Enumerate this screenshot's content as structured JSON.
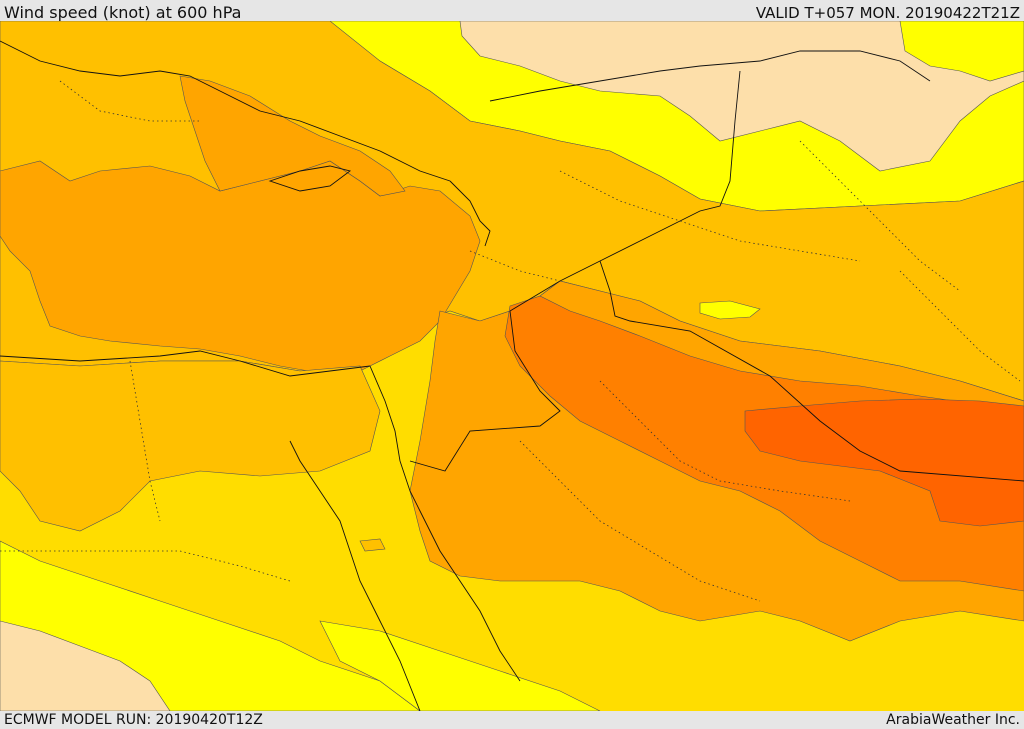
{
  "header": {
    "title": "Wind speed (knot) at 600 hPa",
    "valid": "VALID T+057 MON. 20190422T21Z"
  },
  "footer": {
    "model_run": "ECMWF MODEL RUN: 20190420T12Z",
    "credit": "ArabiaWeather Inc."
  },
  "map": {
    "colors": {
      "band_lightest": "#fddfaa",
      "band_yellow": "#ffff00",
      "band_gold": "#ffdd00",
      "band_amber": "#ffc000",
      "band_orange": "#ffa500",
      "band_dark_orange": "#ff8000",
      "band_red_orange": "#ff6400"
    }
  }
}
